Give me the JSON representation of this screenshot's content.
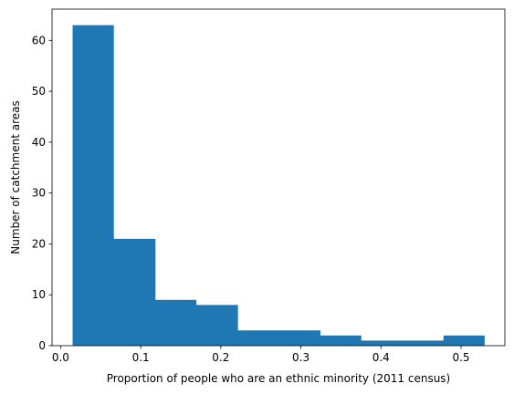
{
  "chart_data": {
    "type": "bar",
    "subtype": "histogram",
    "title": "",
    "xlabel": "Proportion of people who are an ethnic minority (2011 census)",
    "ylabel": "Number of catchment areas",
    "bins": [
      {
        "x0": 0.015,
        "x1": 0.066,
        "count": 63
      },
      {
        "x0": 0.066,
        "x1": 0.118,
        "count": 21
      },
      {
        "x0": 0.118,
        "x1": 0.169,
        "count": 9
      },
      {
        "x0": 0.169,
        "x1": 0.221,
        "count": 8
      },
      {
        "x0": 0.221,
        "x1": 0.272,
        "count": 3
      },
      {
        "x0": 0.272,
        "x1": 0.324,
        "count": 3
      },
      {
        "x0": 0.324,
        "x1": 0.375,
        "count": 2
      },
      {
        "x0": 0.375,
        "x1": 0.426,
        "count": 1
      },
      {
        "x0": 0.426,
        "x1": 0.478,
        "count": 1
      },
      {
        "x0": 0.478,
        "x1": 0.529,
        "count": 2
      }
    ],
    "xlim": [
      -0.0107,
      0.5547
    ],
    "ylim": [
      0,
      66.15
    ],
    "xticks": [
      0.0,
      0.1,
      0.2,
      0.3,
      0.4,
      0.5
    ],
    "xtick_labels": [
      "0.0",
      "0.1",
      "0.2",
      "0.3",
      "0.4",
      "0.5"
    ],
    "yticks": [
      0,
      10,
      20,
      30,
      40,
      50,
      60
    ],
    "ytick_labels": [
      "0",
      "10",
      "20",
      "30",
      "40",
      "50",
      "60"
    ],
    "grid": false,
    "colors": {
      "bar": "#1f77b4",
      "axis": "#000000"
    }
  }
}
